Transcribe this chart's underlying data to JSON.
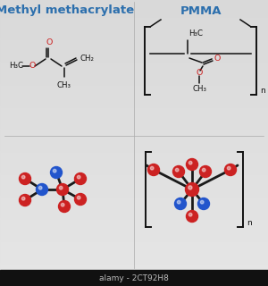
{
  "title_left": "Methyl methacrylate",
  "title_right": "PMMA",
  "title_color": "#2c6fad",
  "title_fontsize": 9.5,
  "red": "#cc2222",
  "blue": "#2255cc",
  "watermark_text": "alamy - 2CT92H8",
  "watermark_bg": "#111111",
  "watermark_color": "#bbbbbb",
  "black": "#111111"
}
